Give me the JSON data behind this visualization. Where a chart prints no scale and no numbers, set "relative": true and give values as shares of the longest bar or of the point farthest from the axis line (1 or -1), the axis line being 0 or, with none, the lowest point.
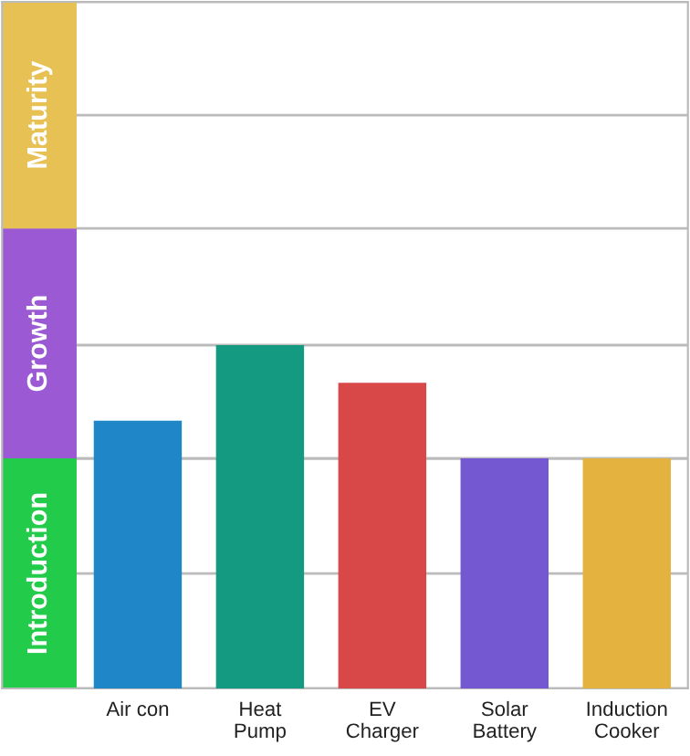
{
  "chart_data": {
    "type": "bar",
    "relative": true,
    "categories": [
      "Air con",
      "Heat\nPump",
      "EV\nCharger",
      "Solar\nBattery",
      "Induction\nCooker"
    ],
    "values": [
      0.78,
      1,
      0.89,
      0.67,
      0.67
    ],
    "colors": [
      "#1f86c8",
      "#159a82",
      "#d84848",
      "#7358d2",
      "#e4b23e"
    ],
    "bands": [
      {
        "axis": "y",
        "from": 0,
        "to": 0.67,
        "label": "Introduction",
        "color": "#22cc4a"
      },
      {
        "axis": "y",
        "from": 0.67,
        "to": 1.34,
        "label": "Growth",
        "color": "#9b59d3"
      },
      {
        "axis": "y",
        "from": 1.34,
        "to": 2.0,
        "label": "Maturity",
        "color": "#e8c154"
      }
    ],
    "ref_lines": [
      {
        "axis": "y",
        "value": 0.335,
        "color": "#bbbbbb"
      },
      {
        "axis": "y",
        "value": 0.67,
        "color": "#bbbbbb"
      },
      {
        "axis": "y",
        "value": 1.0,
        "color": "#bbbbbb"
      },
      {
        "axis": "y",
        "value": 1.67,
        "color": "#bbbbbb"
      }
    ],
    "grid": "y",
    "legend": false
  }
}
